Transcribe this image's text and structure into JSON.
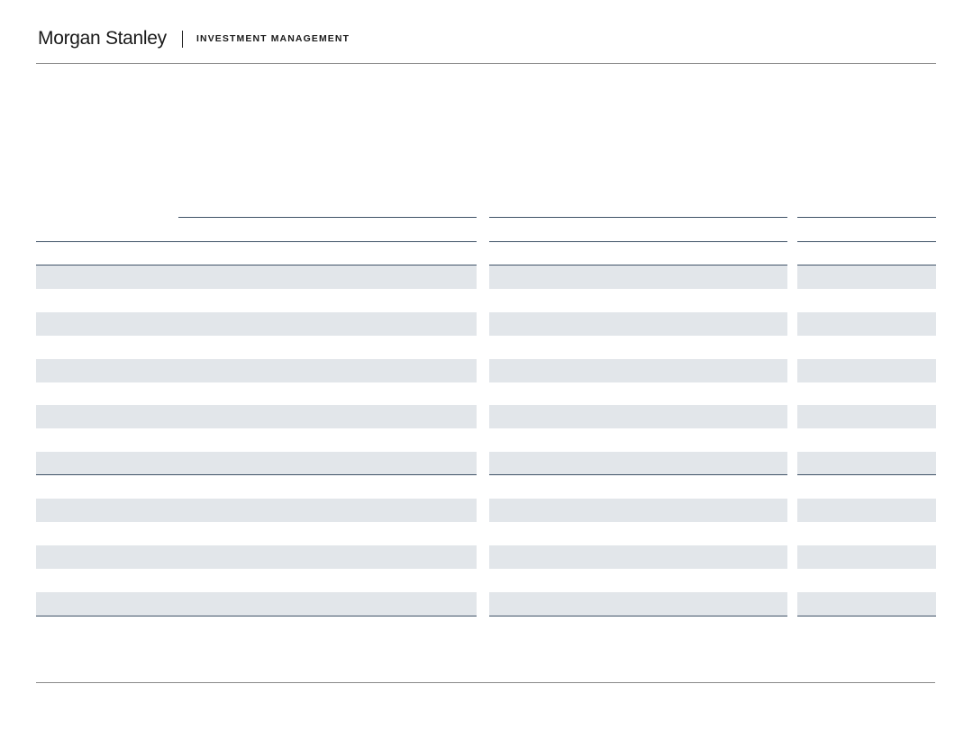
{
  "header": {
    "brand_name": "Morgan Stanley",
    "division_name": "INVESTMENT MANAGEMENT"
  },
  "colors": {
    "text": "#1a1a1a",
    "rule": "#3f5267",
    "band": "#e2e6ea",
    "header_rule": "#8a8a8a"
  },
  "table": {
    "column_count": 4,
    "body_row_count": 15,
    "shaded_rows": 8
  }
}
